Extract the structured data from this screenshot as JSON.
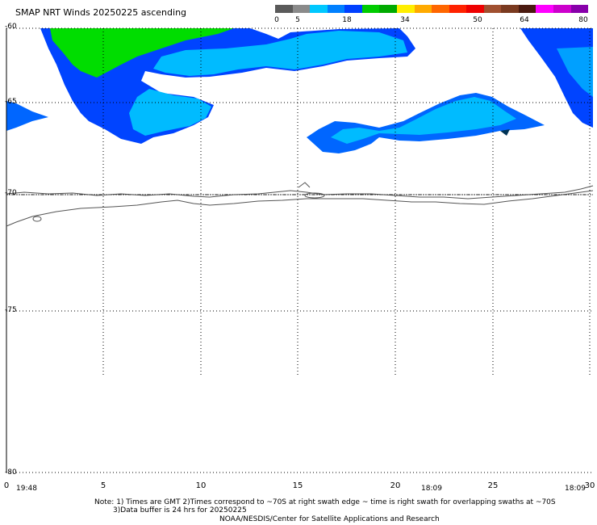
{
  "title": "SMAP NRT Winds 20250225 ascending",
  "colorbar": {
    "labels": [
      "0",
      "5",
      "18",
      "34",
      "50",
      "64",
      "80"
    ],
    "colors": [
      "#5a5a5a",
      "#8a8a8a",
      "#00c8ff",
      "#0080ff",
      "#0040ff",
      "#00cc00",
      "#00aa00",
      "#ffee00",
      "#ffaa00",
      "#ff6600",
      "#ff2200",
      "#ee0000",
      "#a05030",
      "#7a3a20",
      "#4a1a10",
      "#ff00ff",
      "#cc00cc",
      "#8800aa"
    ]
  },
  "axes": {
    "x_ticks": [
      "0",
      "5",
      "10",
      "15",
      "20",
      "25",
      "30"
    ],
    "y_ticks": [
      "-60",
      "-65",
      "-70",
      "-75",
      "-80"
    ],
    "grid": true,
    "grid_style": "dotted"
  },
  "times": [
    "19:48",
    "18:09",
    "18:09"
  ],
  "notes": {
    "line1": "Note: 1) Times are GMT 2)Times correspond to ~70S at right swath edge ~ time is right swath for overlapping swaths at ~70S",
    "line2": "3)Data buffer is 24 hrs for 20250225",
    "line3": "NOAA/NESDIS/Center for Satellite Applications and Research"
  },
  "wind_regions": [
    {
      "name": "west-swath-green",
      "color": "#00dd00"
    },
    {
      "name": "west-swath-blue",
      "color": "#0044ff"
    },
    {
      "name": "west-swath-cyan",
      "color": "#00bbff"
    },
    {
      "name": "east-swath-blue",
      "color": "#0044ff"
    },
    {
      "name": "central-swath-cyan",
      "color": "#00bbff"
    }
  ]
}
